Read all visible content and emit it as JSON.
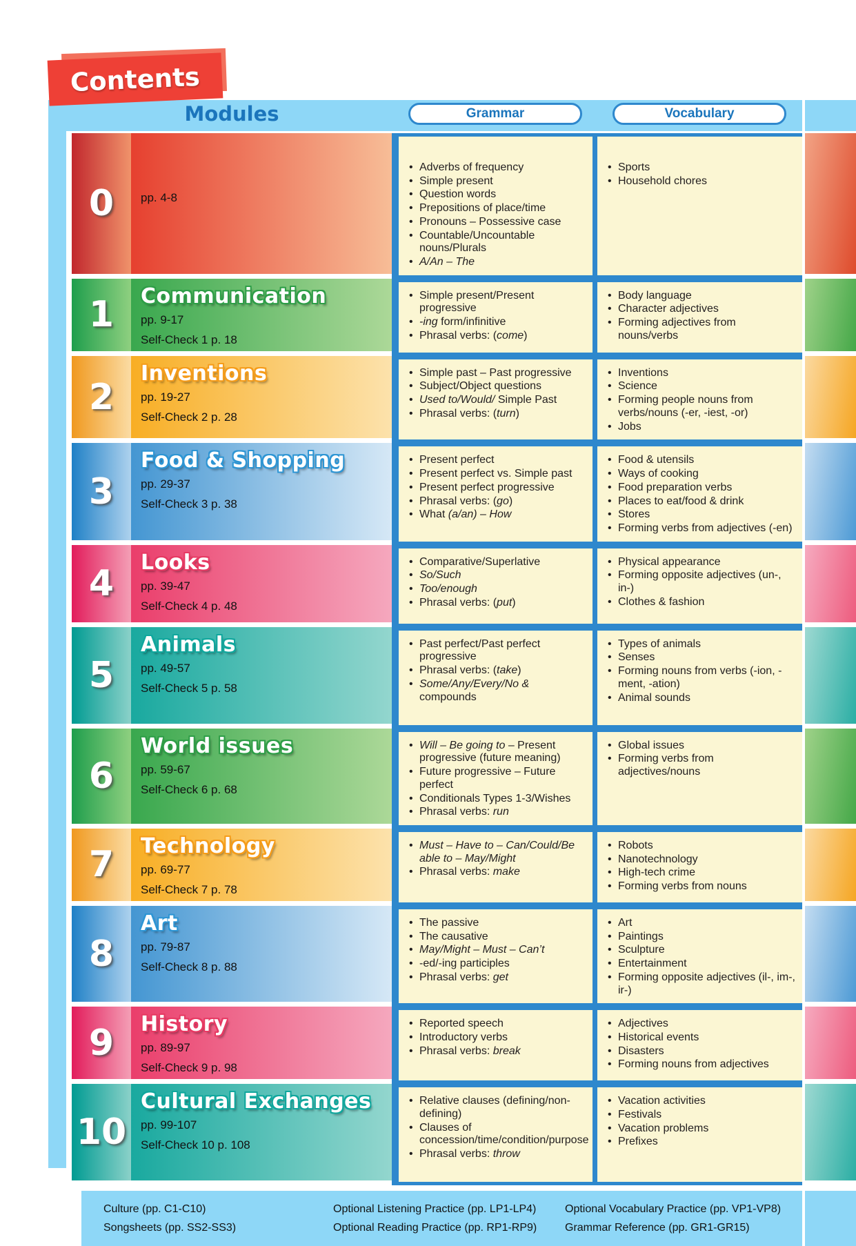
{
  "banner": {
    "title": "Contents"
  },
  "header": {
    "modules": "Modules",
    "grammar": "Grammar",
    "vocabulary": "Vocabulary"
  },
  "colors": {
    "banner_front_red": "#EE4036",
    "banner_back_red": "#F2705C",
    "frame_blue": "#8ED7F7",
    "bar_blue": "#2E88CD",
    "header_text_blue": "#1B75BC",
    "cream_cell": "#FBF6D3",
    "bullet_text": "#221E1F"
  },
  "schemes": {
    "red": {
      "outline": "#E6402F",
      "band": [
        "#C1272D",
        "#F0936B"
      ],
      "main": [
        "#E6402F",
        "#F7BD97"
      ],
      "strip": [
        "#F2A385",
        "#DE4B2C"
      ]
    },
    "green": {
      "outline": "#2E9E47",
      "band": [
        "#1F9E4C",
        "#8FD080"
      ],
      "main": [
        "#39A84E",
        "#ACD898"
      ],
      "strip": [
        "#9FD289",
        "#45A848"
      ]
    },
    "orange": {
      "outline": "#F59C1A",
      "band": [
        "#F0991F",
        "#FBDCA4"
      ],
      "main": [
        "#F8AE24",
        "#FCE2AC"
      ],
      "strip": [
        "#FBD9A0",
        "#F5A623"
      ]
    },
    "blue": {
      "outline": "#2D95D4",
      "band": [
        "#1F80C6",
        "#AED2EE"
      ],
      "main": [
        "#4496D2",
        "#D6E8F6"
      ],
      "strip": [
        "#C3DCF1",
        "#4D9AD5"
      ]
    },
    "pink": {
      "outline": "#E73963",
      "band": [
        "#E21C5B",
        "#F49FB6"
      ],
      "main": [
        "#EA3E6B",
        "#F5A8BE"
      ],
      "strip": [
        "#F6AABF",
        "#ED5C7E"
      ]
    },
    "teal": {
      "outline": "#10A79D",
      "band": [
        "#009B92",
        "#8BD1C9"
      ],
      "main": [
        "#19A99F",
        "#93D6CE"
      ],
      "strip": [
        "#9ED9D2",
        "#2BAEA4"
      ]
    }
  },
  "modules": [
    {
      "num": "0",
      "title": "",
      "pages": "pp. 4-8",
      "self_check": "",
      "scheme": "red",
      "grammar": [
        [
          "Adverbs of frequency"
        ],
        [
          "Simple present"
        ],
        [
          "Question words"
        ],
        [
          "Prepositions of place/time"
        ],
        [
          "Pronouns – Possessive case"
        ],
        [
          "Countable/Uncountable nouns/Plurals"
        ],
        [
          {
            "t": "A/An – The",
            "i": true
          }
        ]
      ],
      "vocabulary": [
        [
          "Sports"
        ],
        [
          "Household chores"
        ]
      ]
    },
    {
      "num": "1",
      "title": "Communication",
      "pages": "pp. 9-17",
      "self_check": "Self-Check 1 p. 18",
      "scheme": "green",
      "grammar": [
        [
          "Simple present/Present progressive"
        ],
        [
          {
            "t": "-ing",
            "i": true
          },
          " form/infinitive"
        ],
        [
          "Phrasal verbs: (",
          {
            "t": "come",
            "i": true
          },
          ")"
        ]
      ],
      "vocabulary": [
        [
          "Body language"
        ],
        [
          "Character adjectives"
        ],
        [
          "Forming adjectives from nouns/verbs"
        ]
      ]
    },
    {
      "num": "2",
      "title": "Inventions",
      "pages": "pp. 19-27",
      "self_check": "Self-Check 2 p. 28",
      "scheme": "orange",
      "grammar": [
        [
          "Simple past – Past progressive"
        ],
        [
          "Subject/Object questions"
        ],
        [
          {
            "t": "Used to/Would/",
            "i": true
          },
          " Simple Past"
        ],
        [
          "Phrasal verbs: (",
          {
            "t": "turn",
            "i": true
          },
          ")"
        ]
      ],
      "vocabulary": [
        [
          "Inventions"
        ],
        [
          "Science"
        ],
        [
          "Forming people nouns from verbs/nouns (-er, -iest, -or)"
        ],
        [
          "Jobs"
        ]
      ]
    },
    {
      "num": "3",
      "title": "Food & Shopping",
      "pages": "pp. 29-37",
      "self_check": "Self-Check 3 p. 38",
      "scheme": "blue",
      "grammar": [
        [
          "Present perfect"
        ],
        [
          "Present perfect vs. Simple past"
        ],
        [
          "Present perfect progressive"
        ],
        [
          "Phrasal verbs: (",
          {
            "t": "go",
            "i": true
          },
          ")"
        ],
        [
          "What ",
          {
            "t": "(a/an)",
            "i": true
          },
          " – ",
          {
            "t": "How",
            "i": true
          }
        ]
      ],
      "vocabulary": [
        [
          "Food & utensils"
        ],
        [
          "Ways of cooking"
        ],
        [
          "Food preparation verbs"
        ],
        [
          "Places to eat/food & drink"
        ],
        [
          "Stores"
        ],
        [
          "Forming verbs from adjectives (-en)"
        ]
      ]
    },
    {
      "num": "4",
      "title": "Looks",
      "pages": "pp. 39-47",
      "self_check": "Self-Check 4 p. 48",
      "scheme": "pink",
      "grammar": [
        [
          "Comparative/Superlative"
        ],
        [
          {
            "t": "So/Such",
            "i": true
          }
        ],
        [
          {
            "t": "Too/enough",
            "i": true
          }
        ],
        [
          "Phrasal verbs: (",
          {
            "t": "put",
            "i": true
          },
          ")"
        ]
      ],
      "vocabulary": [
        [
          "Physical appearance"
        ],
        [
          "Forming opposite adjectives (un-, in-)"
        ],
        [
          "Clothes & fashion"
        ]
      ]
    },
    {
      "num": "5",
      "title": "Animals",
      "pages": "pp. 49-57",
      "self_check": "Self-Check 5 p. 58",
      "scheme": "teal",
      "grammar": [
        [
          "Past perfect/Past perfect progressive"
        ],
        [
          "Phrasal verbs: (",
          {
            "t": "take",
            "i": true
          },
          ")"
        ],
        [
          {
            "t": "Some/Any/Every/No &",
            "i": true
          },
          " compounds"
        ]
      ],
      "vocabulary": [
        [
          "Types of animals"
        ],
        [
          "Senses"
        ],
        [
          "Forming nouns from verbs (-ion, -ment, -ation)"
        ],
        [
          "Animal sounds"
        ]
      ]
    },
    {
      "num": "6",
      "title": "World issues",
      "pages": "pp. 59-67",
      "self_check": "Self-Check 6 p. 68",
      "scheme": "green",
      "grammar": [
        [
          {
            "t": "Will – Be going to",
            "i": true
          },
          " – Present progressive (future meaning)"
        ],
        [
          "Future progressive – Future perfect"
        ],
        [
          "Conditionals Types 1-3/Wishes"
        ],
        [
          "Phrasal verbs: ",
          {
            "t": "run",
            "i": true
          }
        ]
      ],
      "vocabulary": [
        [
          "Global issues"
        ],
        [
          "Forming verbs from adjectives/nouns"
        ]
      ]
    },
    {
      "num": "7",
      "title": "Technology",
      "pages": "pp. 69-77",
      "self_check": "Self-Check 7 p. 78",
      "scheme": "orange",
      "grammar": [
        [
          {
            "t": "Must – Have to – Can/Could/Be able to – May/Might",
            "i": true
          }
        ],
        [
          "Phrasal verbs: ",
          {
            "t": "make",
            "i": true
          }
        ]
      ],
      "vocabulary": [
        [
          "Robots"
        ],
        [
          "Nanotechnology"
        ],
        [
          "High-tech crime"
        ],
        [
          "Forming verbs from nouns"
        ]
      ]
    },
    {
      "num": "8",
      "title": "Art",
      "pages": "pp. 79-87",
      "self_check": "Self-Check 8 p. 88",
      "scheme": "blue",
      "grammar": [
        [
          "The passive"
        ],
        [
          "The causative"
        ],
        [
          {
            "t": "May/Might – Must – Can’t",
            "i": true
          }
        ],
        [
          "-ed/-ing participles"
        ],
        [
          "Phrasal verbs: ",
          {
            "t": "get",
            "i": true
          }
        ]
      ],
      "vocabulary": [
        [
          "Art"
        ],
        [
          "Paintings"
        ],
        [
          "Sculpture"
        ],
        [
          "Entertainment"
        ],
        [
          "Forming opposite adjectives (il-, im-, ir-)"
        ]
      ]
    },
    {
      "num": "9",
      "title": "History",
      "pages": "pp. 89-97",
      "self_check": "Self-Check 9 p. 98",
      "scheme": "pink",
      "grammar": [
        [
          "Reported speech"
        ],
        [
          "Introductory verbs"
        ],
        [
          "Phrasal verbs: ",
          {
            "t": "break",
            "i": true
          }
        ]
      ],
      "vocabulary": [
        [
          "Adjectives"
        ],
        [
          "Historical events"
        ],
        [
          "Disasters"
        ],
        [
          "Forming nouns from adjectives"
        ]
      ]
    },
    {
      "num": "10",
      "title": "Cultural Exchanges",
      "pages": "pp. 99-107",
      "self_check": "Self-Check 10 p. 108",
      "scheme": "teal",
      "grammar": [
        [
          "Relative clauses (defining/non-defining)"
        ],
        [
          "Clauses of concession/time/condition/purpose"
        ],
        [
          "Phrasal verbs: ",
          {
            "t": "throw",
            "i": true
          }
        ]
      ],
      "vocabulary": [
        [
          "Vacation activities"
        ],
        [
          "Festivals"
        ],
        [
          "Vacation problems"
        ],
        [
          "Prefixes"
        ]
      ]
    }
  ],
  "footer": {
    "groups": [
      [
        "Culture (pp. C1-C10)",
        "Songsheets (pp. SS2-SS3)"
      ],
      [
        "Optional Listening Practice (pp. LP1-LP4)",
        "Optional Reading Practice (pp. RP1-RP9)"
      ],
      [
        "Optional Vocabulary Practice (pp. VP1-VP8)",
        "Grammar Reference (pp. GR1-GR15)"
      ]
    ]
  }
}
